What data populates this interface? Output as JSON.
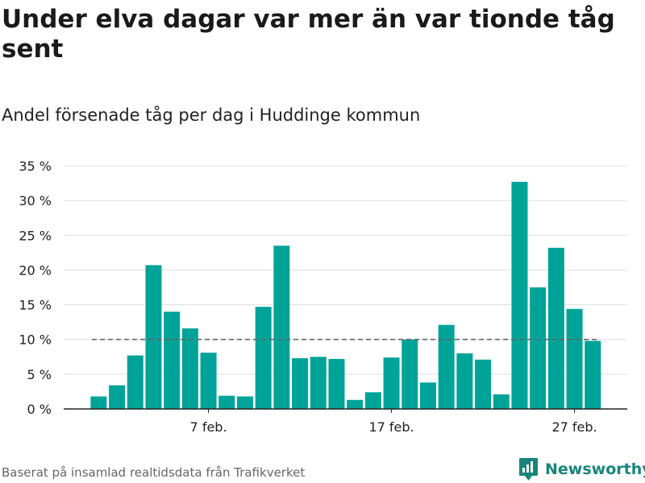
{
  "header": {
    "title": "Under elva dagar var mer än var tionde tåg sent",
    "subtitle": "Andel försenade tåg per dag i Huddinge kommun"
  },
  "footer": {
    "source": "Baserat på insamlad realtidsdata från Trafikverket",
    "brand": "Newsworthy",
    "brand_icon": "bar-chart-logo-icon"
  },
  "colors": {
    "bar": "#00a398",
    "reference_line": "#666666",
    "grid": "#dddddd",
    "brand": "#18857a"
  },
  "chart_data": {
    "type": "bar",
    "title": "Under elva dagar var mer än var tionde tåg sent",
    "subtitle": "Andel försenade tåg per dag i Huddinge kommun",
    "xlabel": "",
    "ylabel": "",
    "x_start_day": 1,
    "x_ticks": [
      {
        "day": 7,
        "label": "7 feb."
      },
      {
        "day": 17,
        "label": "17 feb."
      },
      {
        "day": 27,
        "label": "27 feb."
      }
    ],
    "values": [
      1.8,
      3.4,
      7.7,
      20.7,
      14.0,
      11.6,
      8.1,
      1.9,
      1.8,
      14.7,
      23.5,
      7.3,
      7.5,
      7.2,
      1.3,
      2.4,
      7.4,
      10.0,
      3.8,
      12.1,
      8.0,
      7.1,
      2.1,
      32.7,
      17.5,
      23.2,
      14.4,
      9.8
    ],
    "ylim": [
      0,
      35
    ],
    "y_ticks": [
      {
        "value": 0,
        "label": "0 %"
      },
      {
        "value": 5,
        "label": "5 %"
      },
      {
        "value": 10,
        "label": "10 %"
      },
      {
        "value": 15,
        "label": "15 %"
      },
      {
        "value": 20,
        "label": "20 %"
      },
      {
        "value": 25,
        "label": "25 %"
      },
      {
        "value": 30,
        "label": "30 %"
      },
      {
        "value": 35,
        "label": "35 %"
      }
    ],
    "reference_line": {
      "value": 10,
      "style": "dashed"
    },
    "grid": true,
    "legend": "none"
  }
}
